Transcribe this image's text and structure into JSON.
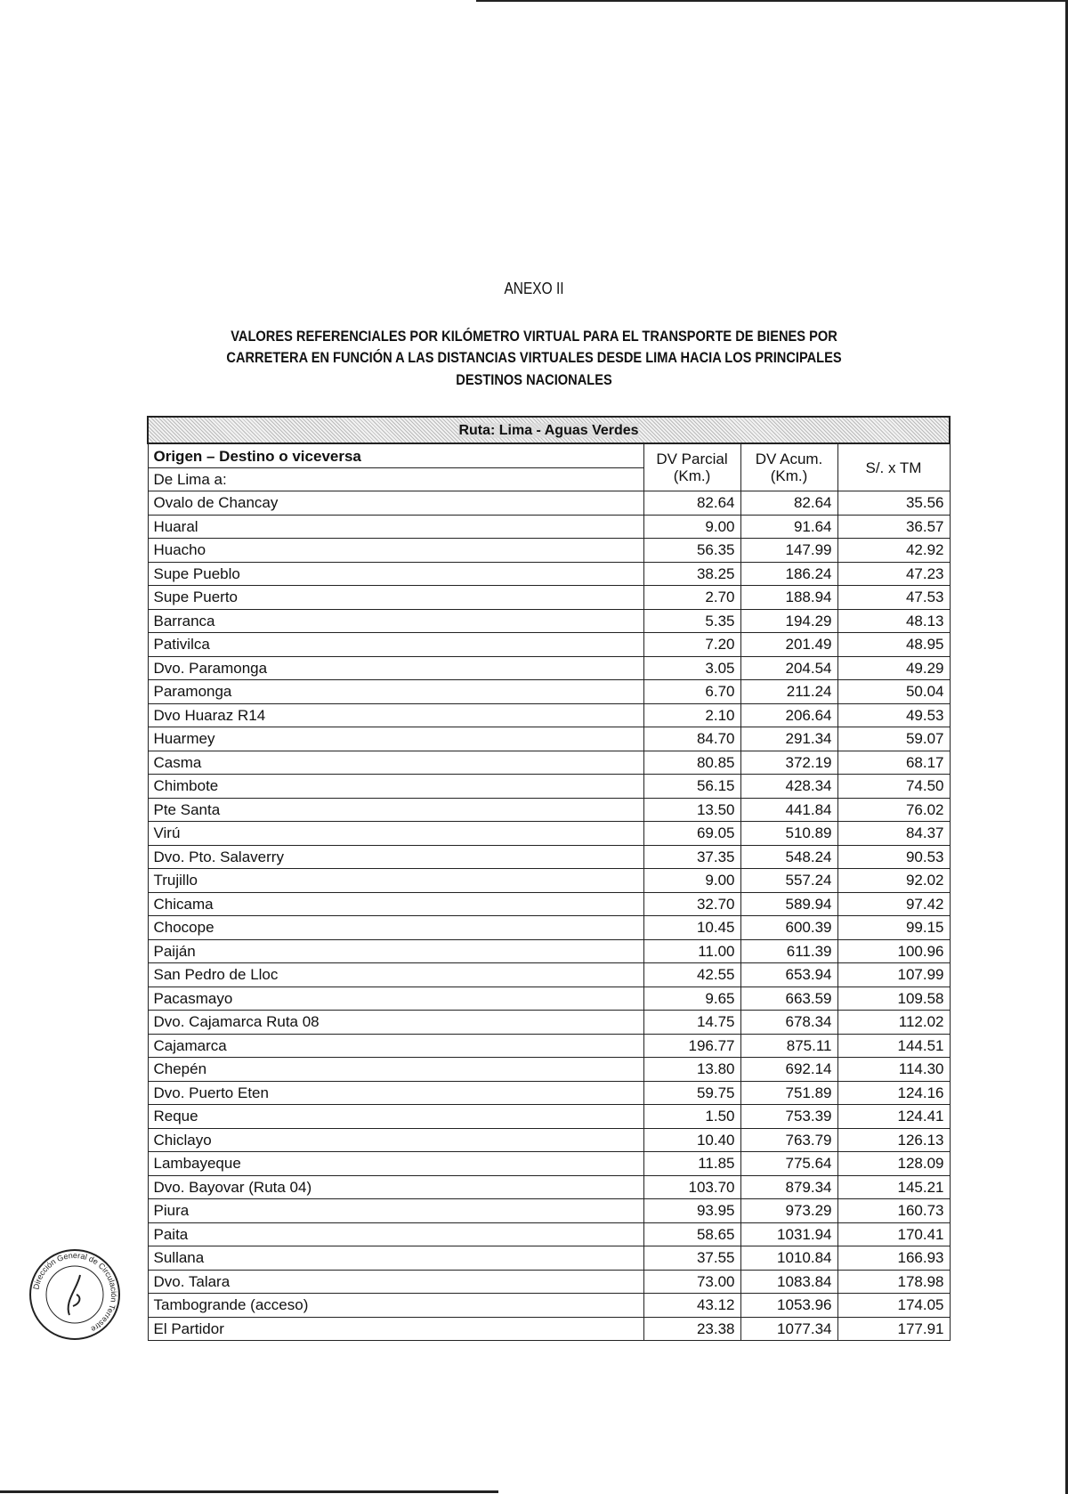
{
  "annex": "ANEXO II",
  "title_lines": [
    "VALORES REFERENCIALES POR KILÓMETRO VIRTUAL PARA EL TRANSPORTE DE BIENES POR",
    "CARRETERA EN FUNCIÓN A LAS DISTANCIAS VIRTUALES DESDE LIMA HACIA LOS PRINCIPALES",
    "DESTINOS NACIONALES"
  ],
  "table": {
    "route": "Ruta: Lima - Aguas Verdes",
    "header_origin": "Origen – Destino o viceversa",
    "header_sub": "De Lima a:",
    "col_parcial": [
      "DV Parcial",
      "(Km.)"
    ],
    "col_acum": [
      "DV Acum.",
      "(Km.)"
    ],
    "col_tm": "S/. x TM",
    "rows": [
      [
        "Ovalo de Chancay",
        "82.64",
        "82.64",
        "35.56"
      ],
      [
        "Huaral",
        "9.00",
        "91.64",
        "36.57"
      ],
      [
        "Huacho",
        "56.35",
        "147.99",
        "42.92"
      ],
      [
        "Supe Pueblo",
        "38.25",
        "186.24",
        "47.23"
      ],
      [
        "Supe Puerto",
        "2.70",
        "188.94",
        "47.53"
      ],
      [
        "Barranca",
        "5.35",
        "194.29",
        "48.13"
      ],
      [
        "Pativilca",
        "7.20",
        "201.49",
        "48.95"
      ],
      [
        "Dvo. Paramonga",
        "3.05",
        "204.54",
        "49.29"
      ],
      [
        "Paramonga",
        "6.70",
        "211.24",
        "50.04"
      ],
      [
        "Dvo Huaraz R14",
        "2.10",
        "206.64",
        "49.53"
      ],
      [
        "Huarmey",
        "84.70",
        "291.34",
        "59.07"
      ],
      [
        "Casma",
        "80.85",
        "372.19",
        "68.17"
      ],
      [
        "Chimbote",
        "56.15",
        "428.34",
        "74.50"
      ],
      [
        "Pte Santa",
        "13.50",
        "441.84",
        "76.02"
      ],
      [
        "Virú",
        "69.05",
        "510.89",
        "84.37"
      ],
      [
        "Dvo. Pto. Salaverry",
        "37.35",
        "548.24",
        "90.53"
      ],
      [
        "Trujillo",
        "9.00",
        "557.24",
        "92.02"
      ],
      [
        "Chicama",
        "32.70",
        "589.94",
        "97.42"
      ],
      [
        "Chocope",
        "10.45",
        "600.39",
        "99.15"
      ],
      [
        "Paiján",
        "11.00",
        "611.39",
        "100.96"
      ],
      [
        "San Pedro de Lloc",
        "42.55",
        "653.94",
        "107.99"
      ],
      [
        "Pacasmayo",
        "9.65",
        "663.59",
        "109.58"
      ],
      [
        "Dvo. Cajamarca Ruta 08",
        "14.75",
        "678.34",
        "112.02"
      ],
      [
        "Cajamarca",
        "196.77",
        "875.11",
        "144.51"
      ],
      [
        "Chepén",
        "13.80",
        "692.14",
        "114.30"
      ],
      [
        "Dvo. Puerto Eten",
        "59.75",
        "751.89",
        "124.16"
      ],
      [
        "Reque",
        "1.50",
        "753.39",
        "124.41"
      ],
      [
        "Chiclayo",
        "10.40",
        "763.79",
        "126.13"
      ],
      [
        "Lambayeque",
        "11.85",
        "775.64",
        "128.09"
      ],
      [
        "Dvo. Bayovar (Ruta 04)",
        "103.70",
        "879.34",
        "145.21"
      ],
      [
        "Piura",
        "93.95",
        "973.29",
        "160.73"
      ],
      [
        "Paita",
        "58.65",
        "1031.94",
        "170.41"
      ],
      [
        "Sullana",
        "37.55",
        "1010.84",
        "166.93"
      ],
      [
        "Dvo. Talara",
        "73.00",
        "1083.84",
        "178.98"
      ],
      [
        "Tambogrande (acceso)",
        "43.12",
        "1053.96",
        "174.05"
      ],
      [
        "El Partidor",
        "23.38",
        "1077.34",
        "177.91"
      ]
    ]
  },
  "stamp_text": "Dirección General de Circulación Terrestre"
}
